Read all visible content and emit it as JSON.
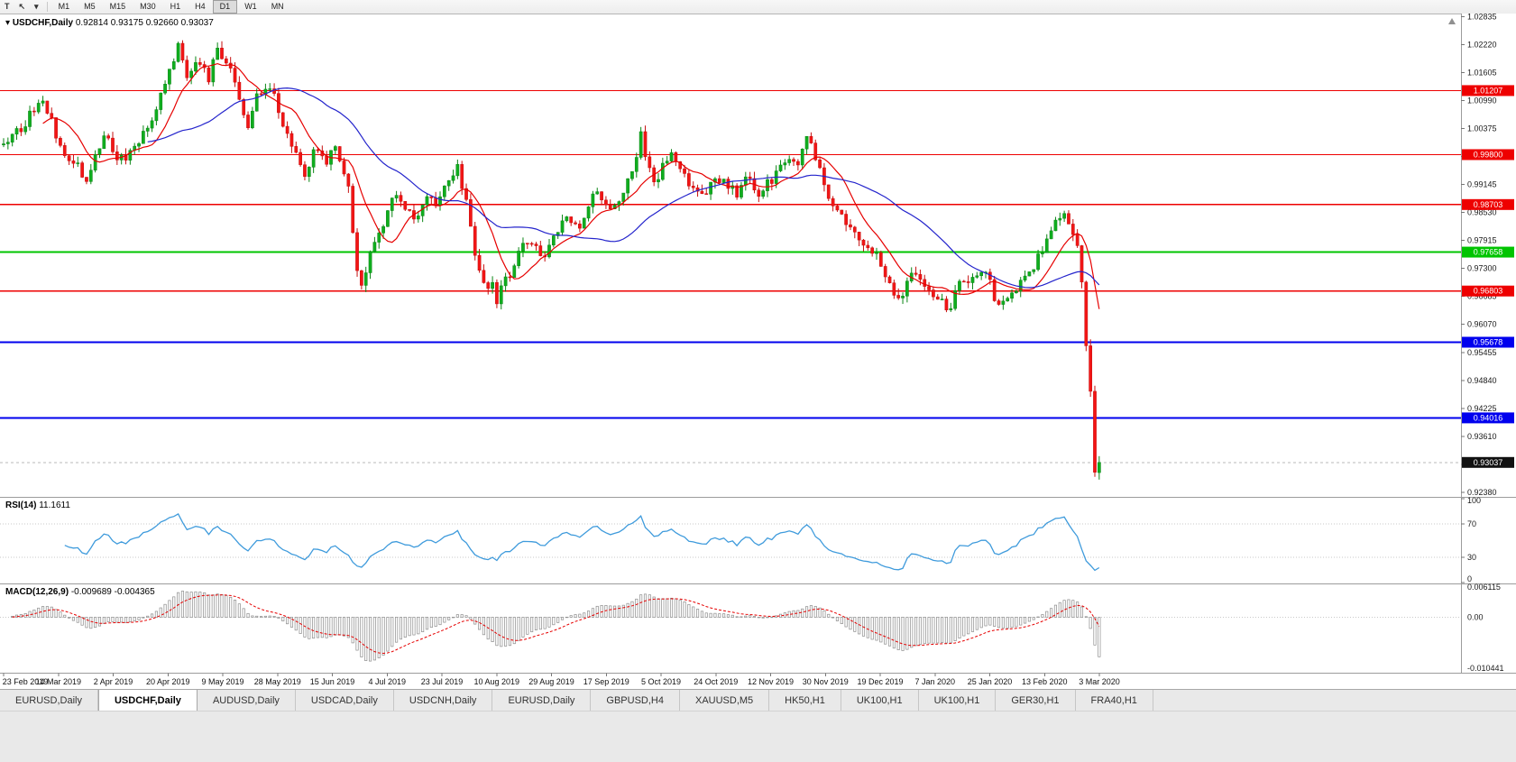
{
  "toolbar": {
    "icons": [
      {
        "name": "text-tool-icon",
        "glyph": "T"
      },
      {
        "name": "cursor-tool-icon",
        "glyph": "↖"
      },
      {
        "name": "dropdown-caret-icon",
        "glyph": "▾"
      }
    ],
    "timeframes": [
      "M1",
      "M5",
      "M15",
      "M30",
      "H1",
      "H4",
      "D1",
      "W1",
      "MN"
    ],
    "active_timeframe": "D1"
  },
  "chart_header": {
    "caret": "▾",
    "symbol": "USDCHF,Daily",
    "ohlc": "0.92814 0.93175 0.92660 0.93037"
  },
  "rsi_panel": {
    "title": "RSI(14)",
    "value": "11.1611"
  },
  "macd_panel": {
    "title": "MACD(12,26,9)",
    "values": "-0.009689 -0.004365"
  },
  "tabs": [
    "EURUSD,Daily",
    "USDCHF,Daily",
    "AUDUSD,Daily",
    "USDCAD,Daily",
    "USDCNH,Daily",
    "EURUSD,Daily",
    "GBPUSD,H4",
    "XAUUSD,M5",
    "HK50,H1",
    "UK100,H1",
    "UK100,H1",
    "GER30,H1",
    "FRA40,H1"
  ],
  "active_tab_index": 1,
  "chart_data": {
    "type": "candlestick",
    "symbol": "USDCHF",
    "timeframe": "Daily",
    "ohlc_current": {
      "open": 0.92814,
      "high": 0.93175,
      "low": 0.9266,
      "close": 0.93037
    },
    "current_price": 0.93037,
    "price_axis": {
      "min": 0.923,
      "max": 1.029,
      "tick_labels": [
        "1.02835",
        "1.02220",
        "1.01605",
        "1.00990",
        "1.00375",
        "0.99760",
        "0.99145",
        "0.98530",
        "0.97915",
        "0.97300",
        "0.96685",
        "0.96070",
        "0.95455",
        "0.94840",
        "0.94225",
        "0.93610",
        "0.92995",
        "0.92380"
      ]
    },
    "hlines": [
      {
        "price": 1.01207,
        "label": "1.01207",
        "color": "#ee0000",
        "width": 1.3
      },
      {
        "price": 0.998,
        "label": "0.99800",
        "color": "#ee0000",
        "width": 1.3
      },
      {
        "price": 0.98703,
        "label": "0.98703",
        "color": "#ee0000",
        "width": 1.3
      },
      {
        "price": 0.97658,
        "label": "0.97658",
        "color": "#00c400",
        "width": 2
      },
      {
        "price": 0.96803,
        "label": "0.96803",
        "color": "#ee0000",
        "width": 1.3
      },
      {
        "price": 0.95678,
        "label": "0.95678",
        "color": "#0000ee",
        "width": 2
      },
      {
        "price": 0.94016,
        "label": "0.94016",
        "color": "#0000ee",
        "width": 2
      }
    ],
    "dates": [
      "23 Feb 2019",
      "14 Mar 2019",
      "2 Apr 2019",
      "20 Apr 2019",
      "9 May 2019",
      "28 May 2019",
      "15 Jun 2019",
      "4 Jul 2019",
      "23 Jul 2019",
      "10 Aug 2019",
      "29 Aug 2019",
      "17 Sep 2019",
      "5 Oct 2019",
      "24 Oct 2019",
      "12 Nov 2019",
      "30 Nov 2019",
      "19 Dec 2019",
      "7 Jan 2020",
      "25 Jan 2020",
      "13 Feb 2020",
      "3 Mar 2020"
    ],
    "candle_count": 252,
    "close_anchors": [
      [
        0,
        1.0
      ],
      [
        4,
        1.004
      ],
      [
        9,
        1.0105
      ],
      [
        13,
        1.0
      ],
      [
        19,
        0.993
      ],
      [
        23,
        1.003
      ],
      [
        26,
        0.996
      ],
      [
        31,
        1.0
      ],
      [
        35,
        1.008
      ],
      [
        38,
        1.016
      ],
      [
        40,
        1.0225
      ],
      [
        42,
        1.015
      ],
      [
        44,
        1.019
      ],
      [
        47,
        1.015
      ],
      [
        49,
        1.021
      ],
      [
        52,
        1.017
      ],
      [
        54,
        1.01
      ],
      [
        56,
        1.004
      ],
      [
        58,
        1.011
      ],
      [
        61,
        1.0135
      ],
      [
        64,
        1.004
      ],
      [
        67,
        0.999
      ],
      [
        69,
        0.994
      ],
      [
        72,
        1.0
      ],
      [
        74,
        0.997
      ],
      [
        76,
        0.999
      ],
      [
        79,
        0.99
      ],
      [
        81,
        0.973
      ],
      [
        82,
        0.969
      ],
      [
        84,
        0.9755
      ],
      [
        86,
        0.98
      ],
      [
        89,
        0.989
      ],
      [
        92,
        0.986
      ],
      [
        94,
        0.9835
      ],
      [
        97,
        0.989
      ],
      [
        99,
        0.987
      ],
      [
        102,
        0.992
      ],
      [
        104,
        0.995
      ],
      [
        106,
        0.987
      ],
      [
        108,
        0.976
      ],
      [
        110,
        0.97
      ],
      [
        112,
        0.969
      ],
      [
        113,
        0.966
      ],
      [
        115,
        0.97
      ],
      [
        117,
        0.973
      ],
      [
        119,
        0.9795
      ],
      [
        122,
        0.977
      ],
      [
        124,
        0.975
      ],
      [
        126,
        0.98
      ],
      [
        129,
        0.9845
      ],
      [
        131,
        0.982
      ],
      [
        133,
        0.984
      ],
      [
        135,
        0.99
      ],
      [
        137,
        0.988
      ],
      [
        140,
        0.986
      ],
      [
        143,
        0.992
      ],
      [
        145,
        0.998
      ],
      [
        146,
        1.002
      ],
      [
        148,
        0.995
      ],
      [
        149,
        0.991
      ],
      [
        151,
        0.996
      ],
      [
        153,
        0.998
      ],
      [
        155,
        0.994
      ],
      [
        157,
        0.992
      ],
      [
        160,
        0.989
      ],
      [
        163,
        0.992
      ],
      [
        165,
        0.993
      ],
      [
        168,
        0.989
      ],
      [
        170,
        0.994
      ],
      [
        173,
        0.99
      ],
      [
        176,
        0.992
      ],
      [
        178,
        0.996
      ],
      [
        180,
        0.998
      ],
      [
        182,
        0.996
      ],
      [
        184,
        1.001
      ],
      [
        186,
        0.998
      ],
      [
        188,
        0.991
      ],
      [
        190,
        0.987
      ],
      [
        192,
        0.985
      ],
      [
        194,
        0.982
      ],
      [
        196,
        0.979
      ],
      [
        198,
        0.978
      ],
      [
        200,
        0.977
      ],
      [
        202,
        0.972
      ],
      [
        204,
        0.968
      ],
      [
        206,
        0.967
      ],
      [
        208,
        0.972
      ],
      [
        210,
        0.97
      ],
      [
        212,
        0.969
      ],
      [
        214,
        0.966
      ],
      [
        217,
        0.9645
      ],
      [
        219,
        0.971
      ],
      [
        221,
        0.97
      ],
      [
        223,
        0.9725
      ],
      [
        225,
        0.973
      ],
      [
        227,
        0.967
      ],
      [
        229,
        0.965
      ],
      [
        231,
        0.968
      ],
      [
        233,
        0.97
      ],
      [
        235,
        0.972
      ],
      [
        237,
        0.975
      ],
      [
        239,
        0.98
      ],
      [
        241,
        0.984
      ],
      [
        243,
        0.9848
      ],
      [
        245,
        0.9815
      ],
      [
        246,
        0.978
      ],
      [
        247,
        0.97
      ],
      [
        248,
        0.956
      ],
      [
        249,
        0.946
      ],
      [
        250,
        0.9282
      ],
      [
        251,
        0.93037
      ]
    ],
    "last_candle": {
      "open": 0.92814,
      "high": 0.93175,
      "low": 0.9266,
      "close": 0.93037
    },
    "colors": {
      "up": "#0fae1e",
      "up_stroke": "#0a8514",
      "down": "#f21515",
      "down_stroke": "#c60f0f",
      "ma_fast": "#e60000",
      "ma_slow": "#2424cc",
      "rsi": "#3f9bdc",
      "macd_hist": "#8c8c8c",
      "macd_signal": "#e60000",
      "axis_text": "#1a1a1a",
      "grid_dotted": "#c9c9c9",
      "separator": "#9c9c9c"
    },
    "moving_averages": [
      {
        "period": 10,
        "color": "#e60000"
      },
      {
        "period": 34,
        "color": "#2424cc"
      }
    ],
    "rsi": {
      "period": 14,
      "current": 11.1611,
      "scale_labels": [
        "100",
        "70",
        "30",
        "0"
      ],
      "levels": [
        70,
        30
      ]
    },
    "macd": {
      "fast": 12,
      "slow": 26,
      "signal": 9,
      "current_main": -0.009689,
      "current_signal": -0.004365,
      "axis_labels": [
        "0.006115",
        "0.00",
        "-0.010441"
      ],
      "range": [
        -0.010441,
        0.006115
      ]
    }
  }
}
